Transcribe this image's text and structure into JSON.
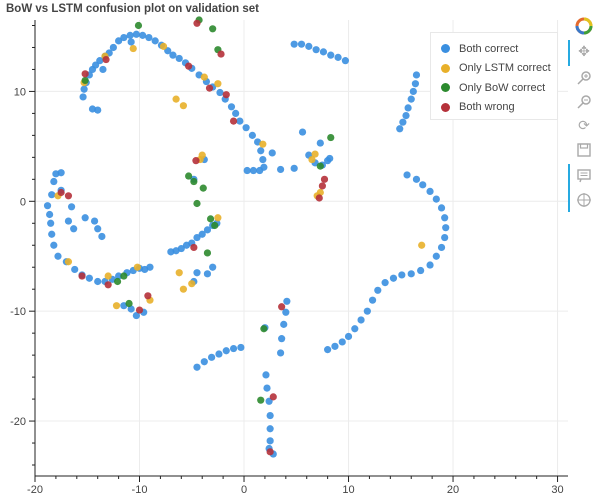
{
  "title": "BoW vs LSTM confusion plot on validation set",
  "legend": [
    {
      "label": "Both correct",
      "color": "#3a8fe0"
    },
    {
      "label": "Only LSTM correct",
      "color": "#e8b02a"
    },
    {
      "label": "Only BoW correct",
      "color": "#2c8a2e"
    },
    {
      "label": "Both wrong",
      "color": "#b5313a"
    }
  ],
  "toolbar": {
    "logo_icon": "bokeh-logo-icon",
    "tools": [
      "pan-icon",
      "box-zoom-in-icon",
      "wheel-zoom-icon",
      "reset-icon",
      "save-icon",
      "hover-icon",
      "crosshair-icon"
    ]
  },
  "chart_data": {
    "type": "scatter",
    "title": "BoW vs LSTM confusion plot on validation set",
    "xlabel": "",
    "ylabel": "",
    "xlim": [
      -20,
      31
    ],
    "ylim": [
      -25,
      16.5
    ],
    "x_ticks": [
      -20,
      -10,
      0,
      10,
      20,
      30
    ],
    "y_ticks": [
      -20,
      -10,
      0,
      10
    ],
    "grid": true,
    "legend_position": "top-right",
    "series": [
      {
        "name": "Both correct",
        "color": "#3a8fe0",
        "points": [
          [
            -15.4,
            9.5
          ],
          [
            -15.3,
            10.2
          ],
          [
            -15.1,
            10.8
          ],
          [
            -14.8,
            11.5
          ],
          [
            -14.5,
            12.0
          ],
          [
            -14.2,
            12.4
          ],
          [
            -13.8,
            12.8
          ],
          [
            -13.3,
            13.2
          ],
          [
            -12.9,
            13.5
          ],
          [
            -12.5,
            14.0
          ],
          [
            -12.0,
            14.6
          ],
          [
            -11.5,
            14.9
          ],
          [
            -10.9,
            15.1
          ],
          [
            -10.3,
            15.2
          ],
          [
            -9.7,
            15.1
          ],
          [
            -9.1,
            14.9
          ],
          [
            -8.5,
            14.6
          ],
          [
            -7.9,
            14.2
          ],
          [
            -7.3,
            13.7
          ],
          [
            -6.8,
            13.3
          ],
          [
            -6.2,
            13.0
          ],
          [
            -5.6,
            12.6
          ],
          [
            -5.0,
            12.1
          ],
          [
            -4.3,
            11.5
          ],
          [
            -3.6,
            10.9
          ],
          [
            -3.0,
            10.4
          ],
          [
            -2.3,
            9.9
          ],
          [
            -1.8,
            9.3
          ],
          [
            -1.2,
            8.6
          ],
          [
            -0.8,
            8.0
          ],
          [
            -0.4,
            7.3
          ],
          [
            0.2,
            6.7
          ],
          [
            0.8,
            6.0
          ],
          [
            1.3,
            5.4
          ],
          [
            1.6,
            4.6
          ],
          [
            1.8,
            3.8
          ],
          [
            1.9,
            3.1
          ],
          [
            1.5,
            2.8
          ],
          [
            0.9,
            2.8
          ],
          [
            0.3,
            2.8
          ],
          [
            -14.5,
            8.4
          ],
          [
            -13.5,
            12.0
          ],
          [
            -10.8,
            14.5
          ],
          [
            4.8,
            14.3
          ],
          [
            5.5,
            14.3
          ],
          [
            6.2,
            14.1
          ],
          [
            6.9,
            13.8
          ],
          [
            7.6,
            13.6
          ],
          [
            8.3,
            13.3
          ],
          [
            9.0,
            13.1
          ],
          [
            9.7,
            12.8
          ],
          [
            16.5,
            11.5
          ],
          [
            16.4,
            10.7
          ],
          [
            16.2,
            10.0
          ],
          [
            16.0,
            9.3
          ],
          [
            15.7,
            8.5
          ],
          [
            15.5,
            7.8
          ],
          [
            15.2,
            7.2
          ],
          [
            14.9,
            6.6
          ],
          [
            -18.2,
            1.8
          ],
          [
            -18.0,
            2.5
          ],
          [
            -17.5,
            2.6
          ],
          [
            -18.4,
            0.6
          ],
          [
            -18.8,
            -0.4
          ],
          [
            -18.6,
            -1.2
          ],
          [
            -18.5,
            -2.0
          ],
          [
            -18.4,
            -3.0
          ],
          [
            -18.2,
            -4.0
          ],
          [
            -17.8,
            -5.0
          ],
          [
            -17.0,
            -5.5
          ],
          [
            -16.2,
            -6.2
          ],
          [
            -15.5,
            -6.7
          ],
          [
            -14.8,
            -7.0
          ],
          [
            -14.0,
            -7.3
          ],
          [
            -13.3,
            -7.3
          ],
          [
            -12.6,
            -7.1
          ],
          [
            -12.0,
            -6.8
          ],
          [
            -11.2,
            -6.5
          ],
          [
            -10.6,
            -6.3
          ],
          [
            -10.0,
            -6.1
          ],
          [
            -9.5,
            -6.2
          ],
          [
            -9.0,
            -6.0
          ],
          [
            -16.8,
            -1.8
          ],
          [
            -16.3,
            -2.5
          ],
          [
            -15.2,
            -1.5
          ],
          [
            -14.3,
            -1.8
          ],
          [
            -14.0,
            -2.5
          ],
          [
            -13.6,
            -3.2
          ],
          [
            -16.5,
            -0.5
          ],
          [
            -17.5,
            1.0
          ],
          [
            -11.5,
            -9.5
          ],
          [
            -10.8,
            -9.8
          ],
          [
            -10.3,
            -10.4
          ],
          [
            -9.6,
            -10.1
          ],
          [
            -7.0,
            -4.6
          ],
          [
            -6.5,
            -4.5
          ],
          [
            -6.0,
            -4.3
          ],
          [
            -5.5,
            -4.0
          ],
          [
            -5.0,
            -3.8
          ],
          [
            -4.5,
            -3.3
          ],
          [
            -4.0,
            -3.0
          ],
          [
            -3.5,
            -2.6
          ],
          [
            -3.0,
            -2.2
          ],
          [
            -2.6,
            -2.0
          ],
          [
            -4.5,
            -6.5
          ],
          [
            -4.8,
            -7.3
          ],
          [
            -3.5,
            -6.6
          ],
          [
            -3.0,
            -6.0
          ],
          [
            -4.5,
            -15.1
          ],
          [
            -3.8,
            -14.6
          ],
          [
            -3.1,
            -14.2
          ],
          [
            -2.4,
            -13.9
          ],
          [
            -1.7,
            -13.6
          ],
          [
            -1.0,
            -13.4
          ],
          [
            -0.3,
            -13.3
          ],
          [
            2.1,
            -15.8
          ],
          [
            2.2,
            -17.0
          ],
          [
            2.4,
            -18.2
          ],
          [
            2.5,
            -19.5
          ],
          [
            2.5,
            -20.7
          ],
          [
            2.5,
            -21.8
          ],
          [
            2.4,
            -22.5
          ],
          [
            2.8,
            -23.0
          ],
          [
            3.5,
            -13.8
          ],
          [
            3.6,
            -12.5
          ],
          [
            3.8,
            -11.2
          ],
          [
            4.0,
            -10.1
          ],
          [
            4.1,
            -9.1
          ],
          [
            2.0,
            -11.5
          ],
          [
            8.0,
            -13.5
          ],
          [
            8.7,
            -13.2
          ],
          [
            9.4,
            -12.8
          ],
          [
            10.0,
            -12.3
          ],
          [
            10.6,
            -11.6
          ],
          [
            11.2,
            -10.8
          ],
          [
            11.8,
            -10.0
          ],
          [
            12.3,
            -9.0
          ],
          [
            12.8,
            -8.1
          ],
          [
            13.5,
            -7.4
          ],
          [
            14.3,
            -7.0
          ],
          [
            15.1,
            -6.7
          ],
          [
            16.0,
            -6.6
          ],
          [
            16.9,
            -6.3
          ],
          [
            17.8,
            -5.8
          ],
          [
            18.4,
            -5.0
          ],
          [
            18.9,
            -4.2
          ],
          [
            19.2,
            -3.3
          ],
          [
            19.3,
            -2.4
          ],
          [
            19.2,
            -1.5
          ],
          [
            18.9,
            -0.6
          ],
          [
            18.4,
            0.2
          ],
          [
            17.8,
            0.9
          ],
          [
            17.1,
            1.5
          ],
          [
            16.5,
            2.0
          ],
          [
            15.6,
            2.4
          ],
          [
            7.5,
            3.3
          ],
          [
            8.0,
            3.7
          ],
          [
            6.8,
            3.5
          ],
          [
            6.2,
            4.2
          ],
          [
            4.8,
            3.0
          ],
          [
            3.5,
            2.9
          ],
          [
            5.6,
            6.3
          ],
          [
            7.3,
            5.3
          ],
          [
            8.2,
            3.9
          ],
          [
            2.7,
            4.4
          ],
          [
            -3.8,
            3.8
          ],
          [
            -4.8,
            2.0
          ],
          [
            -14.0,
            8.3
          ]
        ]
      },
      {
        "name": "Only LSTM correct",
        "color": "#e8b02a",
        "points": [
          [
            -13.3,
            13.2
          ],
          [
            -15.3,
            10.8
          ],
          [
            -10.6,
            13.9
          ],
          [
            -7.7,
            14.1
          ],
          [
            -6.5,
            9.3
          ],
          [
            -5.8,
            8.7
          ],
          [
            -3.8,
            11.3
          ],
          [
            -2.5,
            10.7
          ],
          [
            1.8,
            5.2
          ],
          [
            6.5,
            3.8
          ],
          [
            6.8,
            4.3
          ],
          [
            7.0,
            0.5
          ],
          [
            7.3,
            0.8
          ],
          [
            -17.8,
            0.5
          ],
          [
            -13.0,
            -6.8
          ],
          [
            -10.2,
            -6.0
          ],
          [
            -6.2,
            -6.5
          ],
          [
            -5.8,
            -8.0
          ],
          [
            -5.0,
            -7.5
          ],
          [
            -2.5,
            -1.5
          ],
          [
            -4.2,
            3.8
          ],
          [
            -4.0,
            4.2
          ],
          [
            -9.0,
            -9.0
          ],
          [
            17.0,
            -4.0
          ],
          [
            -16.8,
            -5.5
          ],
          [
            -12.2,
            -9.5
          ]
        ]
      },
      {
        "name": "Only BoW correct",
        "color": "#2c8a2e",
        "points": [
          [
            -15.2,
            11.0
          ],
          [
            -10.1,
            16.0
          ],
          [
            -4.3,
            16.5
          ],
          [
            -3.0,
            15.7
          ],
          [
            -2.5,
            13.8
          ],
          [
            -4.8,
            1.8
          ],
          [
            -4.5,
            -0.2
          ],
          [
            -5.3,
            2.3
          ],
          [
            -3.9,
            1.2
          ],
          [
            -3.2,
            -1.6
          ],
          [
            -2.8,
            -2.2
          ],
          [
            -3.5,
            -4.7
          ],
          [
            -11.5,
            -6.8
          ],
          [
            -12.1,
            -7.3
          ],
          [
            -11.0,
            -9.3
          ],
          [
            8.3,
            5.8
          ],
          [
            1.6,
            -18.1
          ],
          [
            7.3,
            3.2
          ],
          [
            1.9,
            -11.6
          ]
        ]
      },
      {
        "name": "Both wrong",
        "color": "#b5313a",
        "points": [
          [
            -4.5,
            16.2
          ],
          [
            -2.2,
            13.4
          ],
          [
            -3.3,
            10.3
          ],
          [
            -1.7,
            9.7
          ],
          [
            -1.0,
            7.3
          ],
          [
            7.5,
            1.4
          ],
          [
            7.7,
            2.0
          ],
          [
            7.2,
            0.3
          ],
          [
            -15.2,
            11.6
          ],
          [
            -13.2,
            12.9
          ],
          [
            -16.8,
            0.5
          ],
          [
            -17.5,
            0.8
          ],
          [
            -15.5,
            -6.8
          ],
          [
            -13.0,
            -7.6
          ],
          [
            -9.2,
            -8.6
          ],
          [
            -10.0,
            -9.9
          ],
          [
            -4.8,
            -4.2
          ],
          [
            2.8,
            -17.8
          ],
          [
            2.5,
            -22.8
          ],
          [
            3.6,
            -9.6
          ],
          [
            -4.6,
            3.7
          ],
          [
            -5.3,
            12.3
          ]
        ]
      }
    ]
  }
}
